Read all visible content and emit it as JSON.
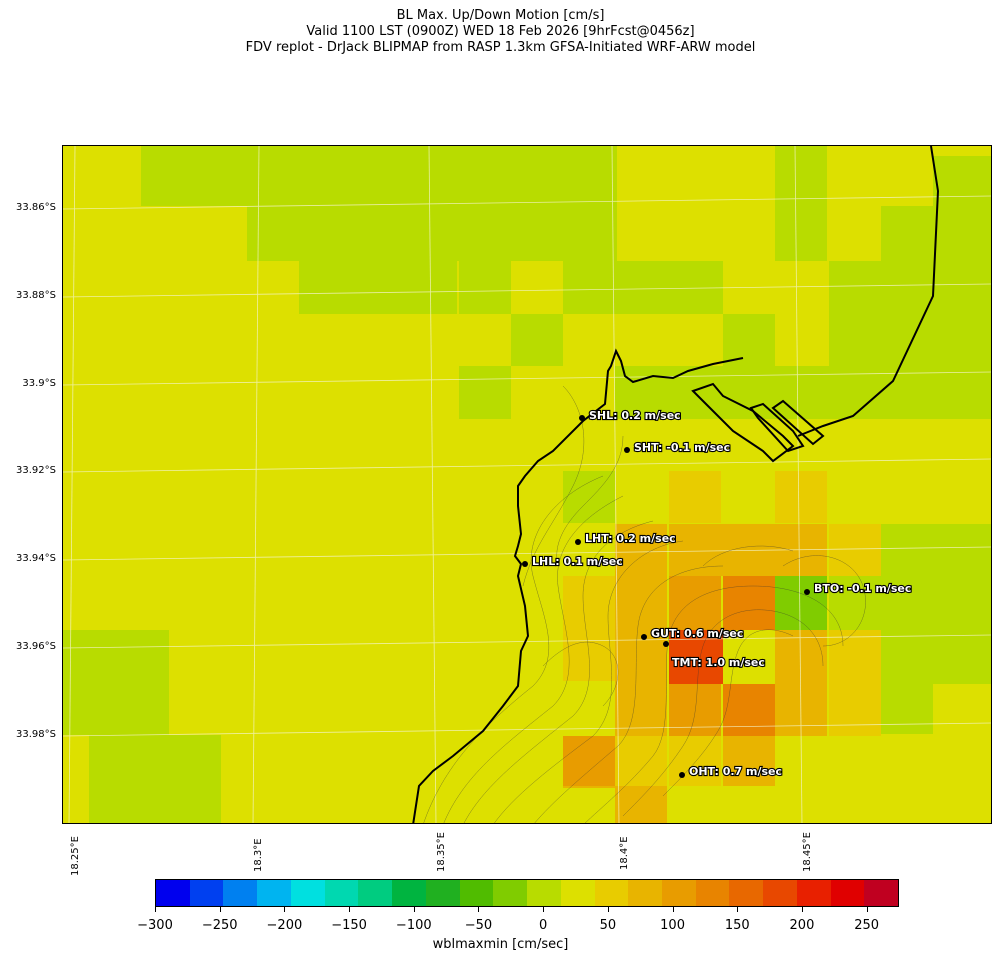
{
  "title": {
    "line1": "BL Max. Up/Down Motion [cm/s]",
    "line2": "Valid 1100 LST (0900Z) WED 18 Feb 2026 [9hrFcst@0456z]",
    "line3": "FDV replot - DrJack BLIPMAP from RASP 1.3km GFSA-Initiated WRF-ARW model"
  },
  "map": {
    "lat_labels": [
      "33.86°S",
      "33.88°S",
      "33.9°S",
      "33.92°S",
      "33.94°S",
      "33.96°S",
      "33.98°S"
    ],
    "lon_labels": [
      "18.25°E",
      "18.3°E",
      "18.35°E",
      "18.4°E",
      "18.45°E"
    ],
    "stations": [
      {
        "code": "SHL",
        "value": "0.2",
        "label": "SHL: 0.2 m/sec"
      },
      {
        "code": "SHT",
        "value": "-0.1",
        "label": "SHT: -0.1 m/sec"
      },
      {
        "code": "LHT",
        "value": "0.2",
        "label": "LHT: 0.2 m/sec"
      },
      {
        "code": "LHL",
        "value": "0.1",
        "label": "LHL: 0.1 m/sec"
      },
      {
        "code": "BTO",
        "value": "-0.1",
        "label": "BTO: -0.1 m/sec"
      },
      {
        "code": "GUT",
        "value": "0.6",
        "label": "GUT: 0.6 m/sec"
      },
      {
        "code": "TMT",
        "value": "1.0",
        "label": "TMT: 1.0 m/sec"
      },
      {
        "code": "OHT",
        "value": "0.7",
        "label": "OHT: 0.7 m/sec"
      }
    ]
  },
  "colorbar": {
    "label": "wblmaxmin [cm/sec]",
    "ticks": [
      "−300",
      "−250",
      "−200",
      "−150",
      "−100",
      "−50",
      "0",
      "50",
      "100",
      "150",
      "200",
      "250"
    ],
    "colors": [
      "#0000ee",
      "#0040f0",
      "#0080f0",
      "#00b4f0",
      "#00e0e0",
      "#00d8b0",
      "#00cc80",
      "#00b440",
      "#20b020",
      "#50bc00",
      "#80cc00",
      "#b8dc00",
      "#dde000",
      "#e8cc00",
      "#e8b400",
      "#e89c00",
      "#e88400",
      "#e86800",
      "#e84800",
      "#e82000",
      "#e00000",
      "#c00020"
    ]
  },
  "legend_colors": {
    "green_light": "#b8dc00",
    "yellow": "#dde000",
    "gold": "#e8cc00",
    "orange_light": "#e8b400",
    "orange": "#e89c00",
    "orange_dark": "#e88400",
    "red": "#e84800",
    "green": "#80cc00"
  }
}
